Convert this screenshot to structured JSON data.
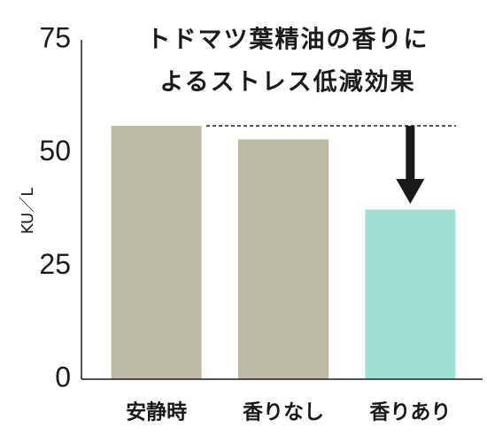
{
  "chart_data": {
    "type": "bar",
    "title": [
      "トドマツ葉精油の香りに",
      "よるストレス低減効果"
    ],
    "y_label": "KU／L",
    "categories": [
      "安静時",
      "香りなし",
      "香りあり"
    ],
    "values": [
      56,
      53,
      37.5
    ],
    "colors": [
      "#bdbba4",
      "#bdbba4",
      "#a0e0d4"
    ],
    "ylim": [
      0,
      75
    ],
    "yticks": [
      0,
      25,
      50,
      75
    ],
    "grid": false
  }
}
